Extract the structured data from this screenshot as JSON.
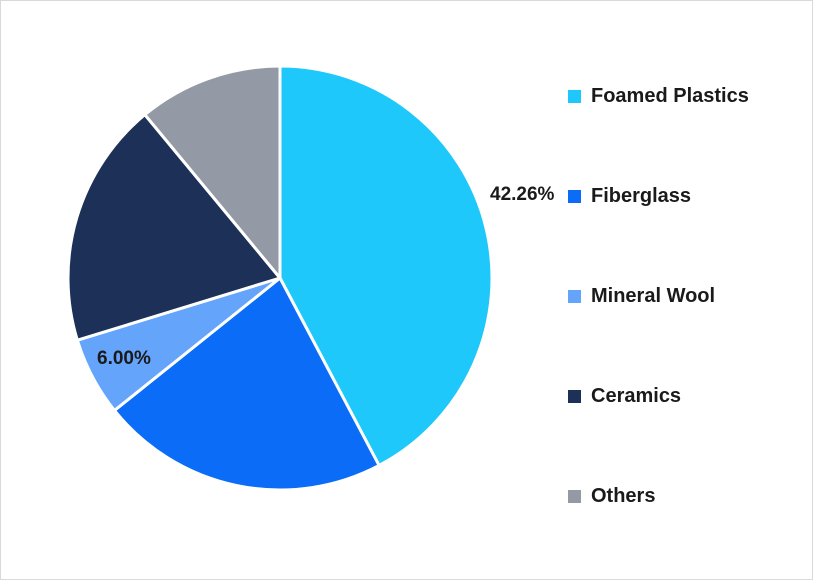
{
  "chart_data": {
    "type": "pie",
    "title": "",
    "legend_position": "right",
    "slices": [
      {
        "label": "Foamed Plastics",
        "value": 42.26,
        "color": "#1ec8fb",
        "data_label": "42.26%"
      },
      {
        "label": "Fiberglass",
        "value": 22.0,
        "color": "#0b6cf7",
        "data_label": ""
      },
      {
        "label": "Mineral Wool",
        "value": 6.0,
        "color": "#65a4fb",
        "data_label": "6.00%"
      },
      {
        "label": "Ceramics",
        "value": 18.74,
        "color": "#1d3057",
        "data_label": ""
      },
      {
        "label": "Others",
        "value": 11.0,
        "color": "#9399a5",
        "data_label": ""
      }
    ]
  }
}
